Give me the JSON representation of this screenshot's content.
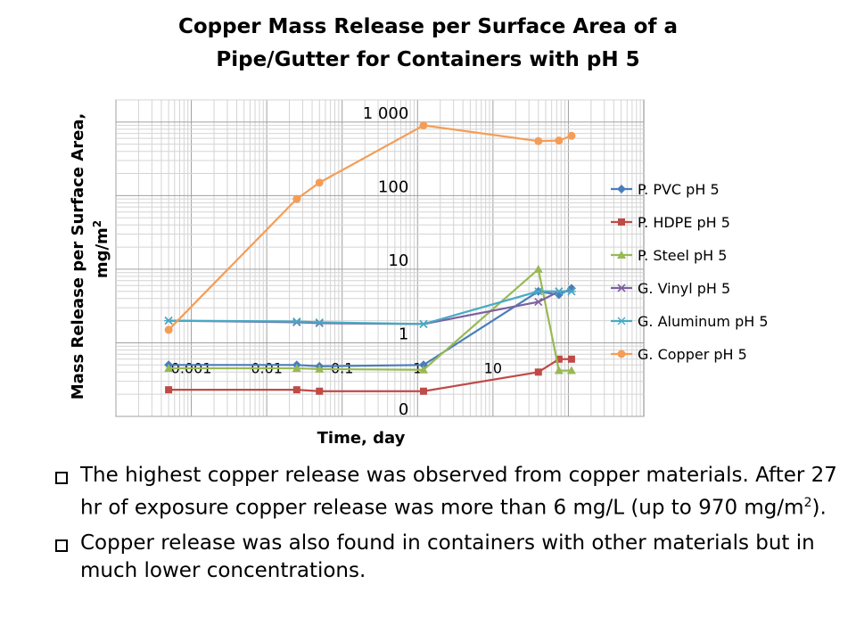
{
  "chart_data": {
    "type": "line",
    "title_lines": [
      "Copper Mass Release per Surface Area  of a",
      "Pipe/Gutter for Containers with pH 5"
    ],
    "xlabel": "Time, day",
    "ylabel_line1": "Mass Release per Surface Area,",
    "ylabel_line2": "mg/m",
    "ylabel_sup": "2",
    "x_scale": "log",
    "y_scale": "log",
    "xlim": [
      0.0001,
      1000
    ],
    "ylim": [
      0.1,
      2000
    ],
    "x_ticks": [
      {
        "value": 0.001,
        "label": "0.001"
      },
      {
        "value": 0.01,
        "label": "0.01"
      },
      {
        "value": 0.1,
        "label": "0.1"
      },
      {
        "value": 1,
        "label": "1"
      },
      {
        "value": 10,
        "label": "10"
      }
    ],
    "y_ticks": [
      {
        "value": 0.1,
        "label": "0"
      },
      {
        "value": 1,
        "label": "1"
      },
      {
        "value": 10,
        "label": "10"
      },
      {
        "value": 100,
        "label": "100"
      },
      {
        "value": 1000,
        "label": "1 000"
      }
    ],
    "grid": true,
    "legend_position": "right",
    "x": [
      0.0005,
      0.025,
      0.05,
      1.2,
      40,
      75,
      110
    ],
    "series": [
      {
        "name": "P. PVC pH 5",
        "color": "#4a7ebb",
        "marker": "diamond",
        "values": [
          0.5,
          0.5,
          0.48,
          0.5,
          5,
          4.5,
          5.5
        ]
      },
      {
        "name": "P. HDPE pH 5",
        "color": "#be4b48",
        "marker": "square",
        "values": [
          0.23,
          0.23,
          0.22,
          0.22,
          0.4,
          0.6,
          0.6
        ]
      },
      {
        "name": "P. Steel pH 5",
        "color": "#98b954",
        "marker": "triangle",
        "values": [
          0.45,
          0.45,
          0.44,
          0.43,
          10,
          0.42,
          0.42
        ]
      },
      {
        "name": "G. Vinyl pH 5",
        "color": "#7d60a0",
        "marker": "x",
        "values": [
          2.0,
          1.9,
          1.85,
          1.8,
          3.6,
          5,
          5
        ]
      },
      {
        "name": "G. Aluminum pH 5",
        "color": "#46aac5",
        "marker": "star",
        "values": [
          2.0,
          1.95,
          1.9,
          1.8,
          5,
          5,
          5
        ]
      },
      {
        "name": "G. Copper pH 5",
        "color": "#f59d56",
        "marker": "circle",
        "values": [
          1.5,
          90,
          150,
          900,
          550,
          560,
          650
        ]
      }
    ]
  },
  "bullets": [
    {
      "text_main": "The highest copper release was observed from copper materials. After 27 hr of exposure copper release was more than 6 mg/L (up to 970 mg/m",
      "text_sup": "2",
      "text_end": ")."
    },
    {
      "text_main": "Copper release was also found in containers with other materials but in much lower concentrations.",
      "text_sup": "",
      "text_end": ""
    }
  ]
}
